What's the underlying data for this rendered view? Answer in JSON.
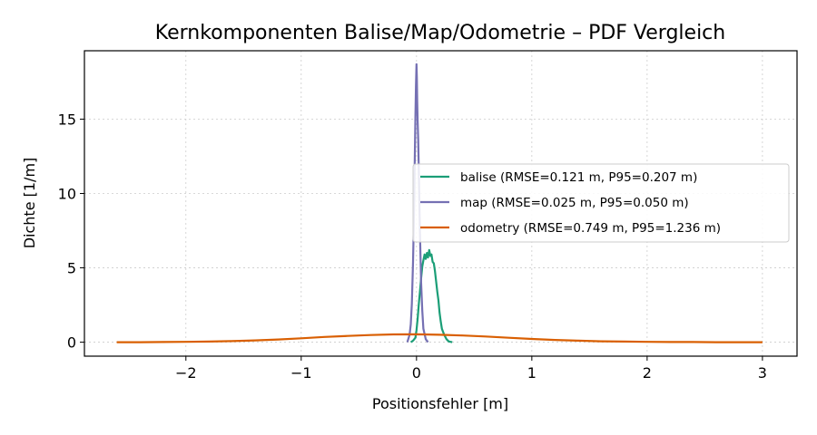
{
  "chart_data": {
    "type": "line",
    "title": "Kernkomponenten Balise/Map/Odometrie – PDF Vergleich",
    "xlabel": "Positionsfehler [m]",
    "ylabel": "Dichte [1/m]",
    "xlim": [
      -2.88,
      3.3
    ],
    "ylim": [
      -0.94,
      19.6
    ],
    "xticks": [
      -2,
      -1,
      0,
      1,
      2,
      3
    ],
    "xtick_labels": [
      "−2",
      "−1",
      "0",
      "1",
      "2",
      "3"
    ],
    "yticks": [
      0,
      5,
      10,
      15
    ],
    "ytick_labels": [
      "0",
      "5",
      "10",
      "15"
    ],
    "grid": true,
    "legend_position": "center-right",
    "series": [
      {
        "name": "balise (RMSE=0.121 m, P95=0.207 m)",
        "color": "#1b9e77",
        "x": [
          -0.05,
          -0.03,
          -0.01,
          0.0,
          0.01,
          0.02,
          0.03,
          0.04,
          0.05,
          0.06,
          0.07,
          0.08,
          0.09,
          0.1,
          0.11,
          0.12,
          0.13,
          0.14,
          0.15,
          0.16,
          0.17,
          0.18,
          0.19,
          0.2,
          0.21,
          0.22,
          0.24,
          0.26,
          0.28,
          0.31
        ],
        "y": [
          0.0,
          0.1,
          0.3,
          0.8,
          1.6,
          2.6,
          3.4,
          4.3,
          5.1,
          5.5,
          5.9,
          5.6,
          6.0,
          5.7,
          6.2,
          5.8,
          5.9,
          5.4,
          5.3,
          4.8,
          4.1,
          3.4,
          2.8,
          2.0,
          1.4,
          0.9,
          0.5,
          0.2,
          0.05,
          0.0
        ]
      },
      {
        "name": "map (RMSE=0.025 m, P95=0.050 m)",
        "color": "#7570b3",
        "x": [
          -0.08,
          -0.06,
          -0.05,
          -0.04,
          -0.03,
          -0.025,
          -0.02,
          -0.015,
          -0.01,
          -0.005,
          0.0,
          0.003,
          0.006,
          0.01,
          0.015,
          0.02,
          0.025,
          0.03,
          0.035,
          0.04,
          0.05,
          0.06,
          0.08,
          0.1
        ],
        "y": [
          0.0,
          0.5,
          1.2,
          2.6,
          5.4,
          7.2,
          9.6,
          12.3,
          15.1,
          17.2,
          18.7,
          17.8,
          16.2,
          14.8,
          13.6,
          11.4,
          9.3,
          7.4,
          5.6,
          4.0,
          2.1,
          0.9,
          0.2,
          0.0
        ]
      },
      {
        "name": "odometry (RMSE=0.749 m, P95=1.236 m)",
        "color": "#d95f02",
        "x": [
          -2.6,
          -2.4,
          -2.2,
          -2.0,
          -1.8,
          -1.6,
          -1.4,
          -1.2,
          -1.0,
          -0.8,
          -0.6,
          -0.4,
          -0.2,
          0.0,
          0.2,
          0.4,
          0.6,
          0.8,
          1.0,
          1.2,
          1.4,
          1.6,
          1.8,
          2.0,
          2.2,
          2.4,
          2.6,
          2.8,
          3.0
        ],
        "y": [
          0.0,
          0.0,
          0.01,
          0.02,
          0.04,
          0.07,
          0.12,
          0.18,
          0.26,
          0.35,
          0.42,
          0.48,
          0.52,
          0.53,
          0.5,
          0.45,
          0.38,
          0.3,
          0.22,
          0.15,
          0.1,
          0.06,
          0.04,
          0.02,
          0.01,
          0.01,
          0.0,
          0.0,
          0.0
        ]
      }
    ]
  }
}
